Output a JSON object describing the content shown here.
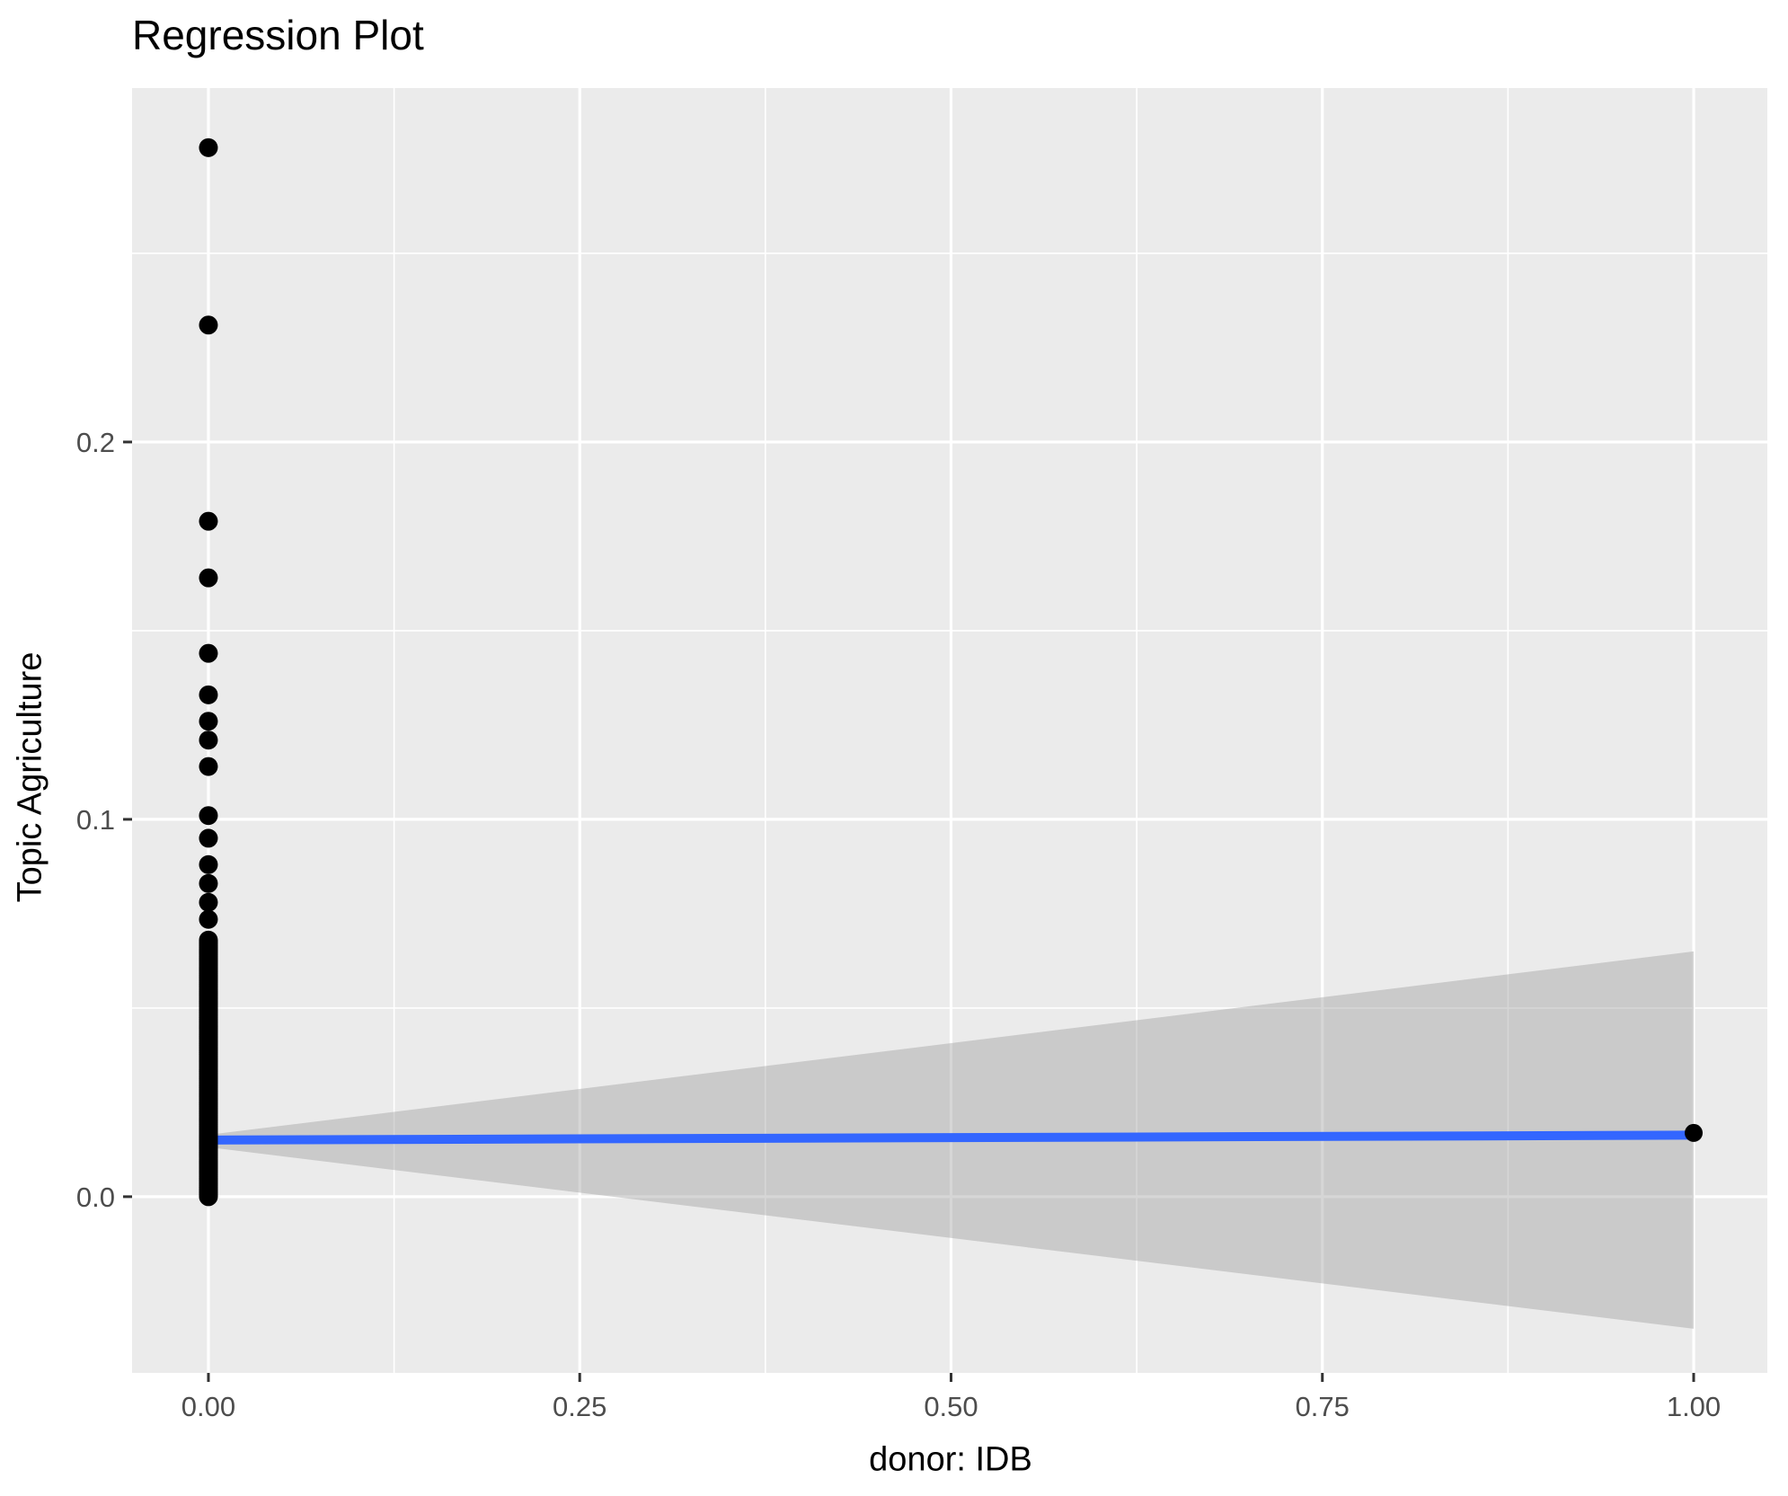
{
  "labels": {
    "title": "Regression Plot",
    "xlabel": "donor: IDB",
    "ylabel": "Topic Agriculture"
  },
  "chart_data": {
    "type": "scatter",
    "title": "Regression Plot",
    "xlabel": "donor: IDB",
    "ylabel": "Topic Agriculture",
    "xlim": [
      -0.0514,
      1.0496
    ],
    "ylim": [
      -0.0467,
      0.2938
    ],
    "grid": "on",
    "legend": "none",
    "x_ticks": {
      "values": [
        0.0,
        0.25,
        0.5,
        0.75,
        1.0
      ],
      "labels": [
        "0.00",
        "0.25",
        "0.50",
        "0.75",
        "1.00"
      ]
    },
    "y_ticks": {
      "values": [
        0.0,
        0.1,
        0.2
      ],
      "labels": [
        "0.0",
        "0.1",
        "0.2"
      ]
    },
    "x_minor_gridlines": [
      0.125,
      0.375,
      0.625,
      0.875
    ],
    "y_minor_gridlines": [
      0.05,
      0.15,
      0.25
    ],
    "points": {
      "x0_isolated_y": [
        0.278,
        0.231,
        0.179,
        0.164,
        0.144,
        0.133,
        0.126,
        0.121,
        0.114,
        0.101,
        0.095,
        0.088,
        0.083,
        0.078,
        0.0735
      ],
      "x0_dense_strip": {
        "x": 0.0,
        "y_min": 0.0,
        "y_max": 0.068,
        "count": 140
      },
      "x1_point": {
        "x": 1.0,
        "y": 0.0169
      }
    },
    "regression_line": {
      "x": [
        0.0,
        1.0
      ],
      "y": [
        0.015,
        0.0163
      ]
    },
    "ci_band": {
      "x": [
        0.0,
        1.0
      ],
      "upper": [
        0.0164,
        0.065
      ],
      "lower": [
        0.0131,
        -0.035
      ]
    },
    "colors": {
      "panel_background": "#EBEBEB",
      "gridline": "#FFFFFF",
      "point": "#000000",
      "regression_line": "#3366FF",
      "ci_band_fill": "#999999",
      "ci_band_opacity": 0.4,
      "tick_label": "#4D4D4D",
      "tick_mark": "#333333",
      "title_text": "#000000"
    }
  }
}
